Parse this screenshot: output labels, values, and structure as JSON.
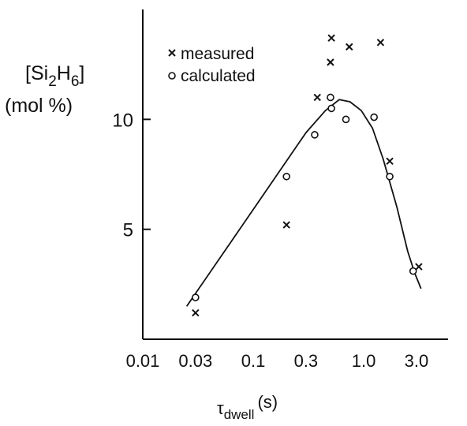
{
  "chart_data": {
    "type": "scatter",
    "title": "",
    "x_scale": "log",
    "xlabel": {
      "symbol": "τ",
      "subscript": "dwell",
      "unit": "(s)"
    },
    "ylabel": {
      "line1_prefix": "[Si",
      "sub1": "2",
      "mid": "H",
      "sub2": "6",
      "suffix": "]",
      "line2": "(mol %)"
    },
    "xlim": [
      0.01,
      5.8
    ],
    "ylim": [
      0,
      15
    ],
    "x_ticks": [
      {
        "value": 0.01,
        "label": "0.01"
      },
      {
        "value": 0.03,
        "label": "0.03"
      },
      {
        "value": 0.1,
        "label": "0.1"
      },
      {
        "value": 0.3,
        "label": "0.3"
      },
      {
        "value": 1.0,
        "label": "1.0"
      },
      {
        "value": 3.0,
        "label": "3.0"
      }
    ],
    "y_ticks": [
      {
        "value": 5,
        "label": "5"
      },
      {
        "value": 10,
        "label": "10"
      }
    ],
    "grid": false,
    "legend_position": "top-left",
    "series": [
      {
        "name": "measured",
        "marker": "x",
        "points": [
          {
            "x": 0.03,
            "y": 1.2
          },
          {
            "x": 0.2,
            "y": 5.2
          },
          {
            "x": 0.38,
            "y": 11.0
          },
          {
            "x": 0.5,
            "y": 12.6
          },
          {
            "x": 0.51,
            "y": 13.7
          },
          {
            "x": 0.74,
            "y": 13.3
          },
          {
            "x": 1.42,
            "y": 13.5
          },
          {
            "x": 1.72,
            "y": 8.1
          },
          {
            "x": 3.15,
            "y": 3.3
          }
        ]
      },
      {
        "name": "calculated",
        "marker": "o",
        "points": [
          {
            "x": 0.03,
            "y": 1.9
          },
          {
            "x": 0.2,
            "y": 7.4
          },
          {
            "x": 0.36,
            "y": 9.3
          },
          {
            "x": 0.5,
            "y": 11.0
          },
          {
            "x": 0.51,
            "y": 10.5
          },
          {
            "x": 0.69,
            "y": 10.0
          },
          {
            "x": 1.24,
            "y": 10.1
          },
          {
            "x": 1.72,
            "y": 7.4
          },
          {
            "x": 2.8,
            "y": 3.1
          }
        ]
      },
      {
        "name": "",
        "type": "line",
        "points": [
          {
            "x": 0.025,
            "y": 1.5
          },
          {
            "x": 0.1,
            "y": 5.9
          },
          {
            "x": 0.3,
            "y": 9.4
          },
          {
            "x": 0.45,
            "y": 10.4
          },
          {
            "x": 0.6,
            "y": 10.9
          },
          {
            "x": 0.75,
            "y": 10.8
          },
          {
            "x": 0.95,
            "y": 10.4
          },
          {
            "x": 1.2,
            "y": 9.6
          },
          {
            "x": 1.5,
            "y": 8.2
          },
          {
            "x": 2.0,
            "y": 6.0
          },
          {
            "x": 2.5,
            "y": 4.0
          },
          {
            "x": 2.9,
            "y": 3.0
          },
          {
            "x": 3.3,
            "y": 2.3
          }
        ]
      }
    ]
  }
}
